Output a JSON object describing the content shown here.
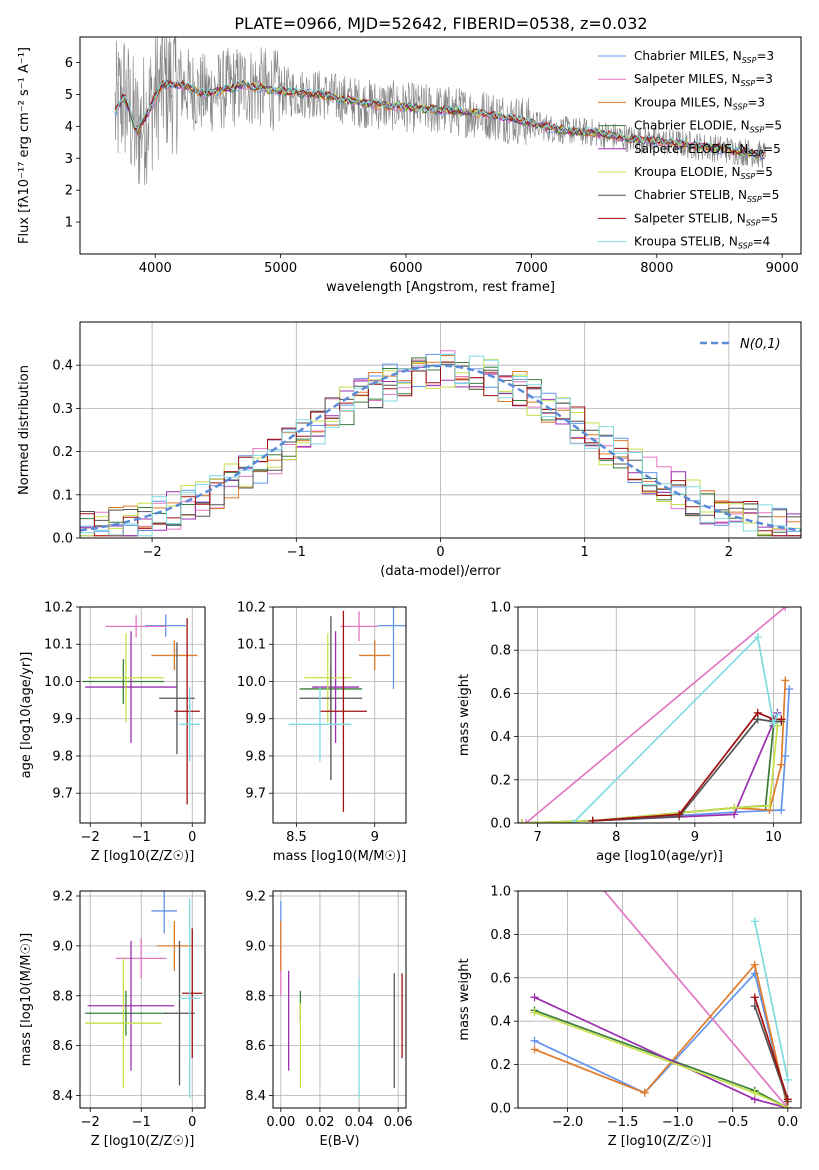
{
  "figure": {
    "title": "PLATE=0966, MJD=52642, FIBERID=0538, z=0.032"
  },
  "models": [
    {
      "label": "Chabrier MILES, N",
      "sub": "SSP",
      "tail": "=3",
      "color": "#6495ed"
    },
    {
      "label": "Salpeter MILES, N",
      "sub": "SSP",
      "tail": "=3",
      "color": "#e377c2"
    },
    {
      "label": "Kroupa MILES, N",
      "sub": "SSP",
      "tail": "=3",
      "color": "#e07b2a"
    },
    {
      "label": "Chabrier ELODIE, N",
      "sub": "SSP",
      "tail": "=5",
      "color": "#3a7d3a"
    },
    {
      "label": "Salpeter ELODIE, N",
      "sub": "SSP",
      "tail": "=5",
      "color": "#9b30b0"
    },
    {
      "label": "Kroupa ELODIE, N",
      "sub": "SSP",
      "tail": "=5",
      "color": "#c6e04a"
    },
    {
      "label": "Chabrier STELIB, N",
      "sub": "SSP",
      "tail": "=5",
      "color": "#555555"
    },
    {
      "label": "Salpeter STELIB, N",
      "sub": "SSP",
      "tail": "=5",
      "color": "#a01010"
    },
    {
      "label": "Kroupa STELIB, N",
      "sub": "SSP",
      "tail": "=4",
      "color": "#7fdbe0"
    }
  ],
  "chart_data": [
    {
      "id": "spectrum",
      "type": "line",
      "xlabel": "wavelength [Angstrom, rest frame]",
      "ylabel": "Flux [fλ10⁻¹⁷ erg cm⁻² s⁻¹ A⁻¹]",
      "xlim": [
        3400,
        9150
      ],
      "ylim": [
        0,
        6.8
      ],
      "xticks": [
        4000,
        5000,
        6000,
        7000,
        8000,
        9000
      ],
      "yticks": [
        1,
        2,
        3,
        4,
        5,
        6
      ],
      "data_color": "#808080",
      "model_anchor_x": [
        3680,
        3750,
        3850,
        3950,
        4050,
        4200,
        4400,
        4700,
        5000,
        5300,
        5700,
        6000,
        6300,
        6600,
        6900,
        7200,
        7500,
        7800,
        8100,
        8400,
        8700,
        8850
      ],
      "model_anchor_y": [
        4.4,
        5.0,
        3.8,
        4.5,
        5.3,
        5.3,
        5.0,
        5.3,
        5.1,
        5.0,
        4.7,
        4.6,
        4.5,
        4.4,
        4.2,
        3.9,
        3.8,
        3.6,
        3.5,
        3.35,
        3.2,
        3.1
      ]
    },
    {
      "id": "residuals",
      "type": "histogram",
      "xlabel": "(data-model)/error",
      "ylabel": "Normed distribution",
      "xlim": [
        -2.5,
        2.5
      ],
      "ylim": [
        0,
        0.5
      ],
      "xticks": [
        -2,
        -1,
        0,
        1,
        2
      ],
      "yticks": [
        0.0,
        0.1,
        0.2,
        0.3,
        0.4
      ],
      "grid": true,
      "legend": "top-right",
      "reference_curve": {
        "name": "N(0,1)",
        "mean": 0,
        "sigma": 1,
        "color": "#5b8bd6"
      },
      "bin_width": 0.1
    },
    {
      "id": "age-vs-Z",
      "type": "errorbar",
      "xlabel": "Z [log10(Z/Z☉)]",
      "ylabel": "age [log10(age/yr)]",
      "xlim": [
        -2.2,
        0.25
      ],
      "ylim": [
        9.62,
        10.2
      ],
      "xticks": [
        -2,
        -1,
        0
      ],
      "yticks": [
        9.7,
        9.8,
        9.9,
        10.0,
        10.1,
        10.2
      ],
      "points": [
        {
          "x": -0.52,
          "y": 10.15,
          "xerr": 0.4,
          "yerr": 0.03
        },
        {
          "x": -1.1,
          "y": 10.148,
          "xerr": 0.6,
          "yerr": 0.03
        },
        {
          "x": -0.35,
          "y": 10.07,
          "xerr": 0.45,
          "yerr": 0.04
        },
        {
          "x": -1.35,
          "y": 10.0,
          "xerr": 0.8,
          "yerr": 0.06
        },
        {
          "x": -1.2,
          "y": 9.985,
          "xerr": 0.9,
          "yerr": 0.15
        },
        {
          "x": -1.3,
          "y": 10.01,
          "xerr": 0.75,
          "yerr": 0.12
        },
        {
          "x": -0.3,
          "y": 9.955,
          "xerr": 0.35,
          "yerr": 0.15
        },
        {
          "x": -0.1,
          "y": 9.92,
          "xerr": 0.25,
          "yerr": 0.25
        },
        {
          "x": -0.05,
          "y": 9.885,
          "xerr": 0.2,
          "yerr": 0.1
        }
      ]
    },
    {
      "id": "age-vs-mass",
      "type": "errorbar",
      "xlabel": "mass [log10(M/M☉)]",
      "ylabel": "",
      "xlim": [
        8.35,
        9.2
      ],
      "ylim": [
        9.62,
        10.2
      ],
      "xticks": [
        8.5,
        9.0
      ],
      "yticks": [
        9.7,
        9.8,
        9.9,
        10.0,
        10.1,
        10.2
      ],
      "points": [
        {
          "x": 9.12,
          "y": 10.15,
          "xerr": 0.1,
          "yerr": 0.17
        },
        {
          "x": 8.9,
          "y": 10.148,
          "xerr": 0.12,
          "yerr": 0.04
        },
        {
          "x": 9.0,
          "y": 10.07,
          "xerr": 0.1,
          "yerr": 0.04
        },
        {
          "x": 8.72,
          "y": 9.98,
          "xerr": 0.2,
          "yerr": 0.06
        },
        {
          "x": 8.75,
          "y": 9.985,
          "xerr": 0.15,
          "yerr": 0.15
        },
        {
          "x": 8.7,
          "y": 10.01,
          "xerr": 0.15,
          "yerr": 0.12
        },
        {
          "x": 8.72,
          "y": 9.955,
          "xerr": 0.2,
          "yerr": 0.22
        },
        {
          "x": 8.8,
          "y": 9.92,
          "xerr": 0.15,
          "yerr": 0.27
        },
        {
          "x": 8.65,
          "y": 9.885,
          "xerr": 0.2,
          "yerr": 0.1
        }
      ]
    },
    {
      "id": "mass-weight-vs-age",
      "type": "line",
      "xlabel": "age [log10(age/yr)]",
      "ylabel": "mass weight",
      "xlim": [
        6.75,
        10.35
      ],
      "ylim": [
        0,
        1.0
      ],
      "xticks": [
        7,
        8,
        9,
        10
      ],
      "yticks": [
        0.0,
        0.2,
        0.4,
        0.6,
        0.8,
        1.0
      ],
      "grid": true,
      "series": [
        {
          "x": [
            7.7,
            9.5,
            10.1,
            10.15,
            10.2
          ],
          "y": [
            0.01,
            0.05,
            0.06,
            0.31,
            0.62
          ]
        },
        {
          "x": [
            6.85,
            10.15
          ],
          "y": [
            0.0,
            1.0
          ]
        },
        {
          "x": [
            7.7,
            9.5,
            9.95,
            10.1,
            10.15
          ],
          "y": [
            0.01,
            0.07,
            0.06,
            0.27,
            0.66
          ]
        },
        {
          "x": [
            6.8,
            7.7,
            9.5,
            9.9,
            10.0
          ],
          "y": [
            0.0,
            0.01,
            0.07,
            0.08,
            0.45
          ]
        },
        {
          "x": [
            6.8,
            7.7,
            9.5,
            10.05
          ],
          "y": [
            0.0,
            0.01,
            0.04,
            0.51
          ]
        },
        {
          "x": [
            6.8,
            7.7,
            9.5,
            9.95,
            10.05
          ],
          "y": [
            0.0,
            0.01,
            0.07,
            0.08,
            0.45
          ]
        },
        {
          "x": [
            7.7,
            8.8,
            9.8,
            10.0,
            10.1
          ],
          "y": [
            0.01,
            0.03,
            0.48,
            0.47,
            0.47
          ]
        },
        {
          "x": [
            7.7,
            8.8,
            9.8,
            10.0,
            10.1
          ],
          "y": [
            0.01,
            0.04,
            0.51,
            0.48,
            0.48
          ]
        },
        {
          "x": [
            7.45,
            9.8,
            10.0,
            10.05
          ],
          "y": [
            0.0,
            0.86,
            0.46,
            0.5
          ]
        }
      ]
    },
    {
      "id": "mass-vs-Z",
      "type": "errorbar",
      "xlabel": "Z [log10(Z/Z☉)]",
      "ylabel": "mass [log10(M/M☉)]",
      "xlim": [
        -2.2,
        0.25
      ],
      "ylim": [
        8.35,
        9.22
      ],
      "xticks": [
        -2,
        -1,
        0
      ],
      "yticks": [
        8.4,
        8.6,
        8.8,
        9.0,
        9.2
      ],
      "points": [
        {
          "x": -0.55,
          "y": 9.14,
          "xerr": 0.25,
          "yerr": 0.09
        },
        {
          "x": -1.0,
          "y": 8.95,
          "xerr": 0.5,
          "yerr": 0.08
        },
        {
          "x": -0.35,
          "y": 9.0,
          "xerr": 0.35,
          "yerr": 0.1
        },
        {
          "x": -1.3,
          "y": 8.73,
          "xerr": 0.8,
          "yerr": 0.09
        },
        {
          "x": -1.2,
          "y": 8.76,
          "xerr": 0.85,
          "yerr": 0.26
        },
        {
          "x": -1.35,
          "y": 8.69,
          "xerr": 0.75,
          "yerr": 0.26
        },
        {
          "x": -0.25,
          "y": 8.73,
          "xerr": 0.3,
          "yerr": 0.29
        },
        {
          "x": 0.0,
          "y": 8.81,
          "xerr": 0.2,
          "yerr": 0.26
        },
        {
          "x": -0.05,
          "y": 8.79,
          "xerr": 0.2,
          "yerr": 0.4
        }
      ]
    },
    {
      "id": "mass-vs-EBV",
      "type": "errorbar",
      "xlabel": "E(B-V)",
      "ylabel": "",
      "xlim": [
        -0.004,
        0.064
      ],
      "ylim": [
        8.35,
        9.22
      ],
      "xticks": [
        0.0,
        0.02,
        0.04,
        0.06
      ],
      "xticklabels": [
        "0.00",
        "0.02",
        "0.04",
        "0.06"
      ],
      "yticks": [
        8.4,
        8.6,
        8.8,
        9.0,
        9.2
      ],
      "points": [
        {
          "x": 0.0,
          "y": 9.05,
          "xerr": 0,
          "yerr": 0.13
        },
        {
          "x": 0.0,
          "y": 8.9,
          "xerr": 0,
          "yerr": 0.1
        },
        {
          "x": 0.0,
          "y": 9.0,
          "xerr": 0,
          "yerr": 0.1
        },
        {
          "x": 0.01,
          "y": 8.76,
          "xerr": 0,
          "yerr": 0.06
        },
        {
          "x": 0.004,
          "y": 8.7,
          "xerr": 0,
          "yerr": 0.2
        },
        {
          "x": 0.01,
          "y": 8.6,
          "xerr": 0,
          "yerr": 0.17
        },
        {
          "x": 0.058,
          "y": 8.66,
          "xerr": 0,
          "yerr": 0.23
        },
        {
          "x": 0.062,
          "y": 8.72,
          "xerr": 0,
          "yerr": 0.17
        },
        {
          "x": 0.04,
          "y": 8.63,
          "xerr": 0,
          "yerr": 0.24
        }
      ]
    },
    {
      "id": "mass-weight-vs-Z",
      "type": "line",
      "xlabel": "Z [log10(Z/Z☉)]",
      "ylabel": "mass weight",
      "xlim": [
        -2.45,
        0.12
      ],
      "ylim": [
        0,
        1.0
      ],
      "xticks": [
        -2.0,
        -1.5,
        -1.0,
        -0.5,
        0.0
      ],
      "xticklabels": [
        "−2.0",
        "−1.5",
        "−1.0",
        "−0.5",
        "0.0"
      ],
      "yticks": [
        0.0,
        0.2,
        0.4,
        0.6,
        0.8,
        1.0
      ],
      "grid": true,
      "series": [
        {
          "x": [
            -2.3,
            -1.3,
            -0.3,
            0.0
          ],
          "y": [
            0.31,
            0.07,
            0.62,
            0.0
          ]
        },
        {
          "x": [
            -1.75,
            0.0
          ],
          "y": [
            1.05,
            0.0
          ]
        },
        {
          "x": [
            -2.3,
            -1.3,
            -0.3,
            0.0
          ],
          "y": [
            0.27,
            0.07,
            0.66,
            0.0
          ]
        },
        {
          "x": [
            -2.3,
            -0.3,
            0.0
          ],
          "y": [
            0.45,
            0.08,
            0.0
          ]
        },
        {
          "x": [
            -2.3,
            -0.3,
            0.0
          ],
          "y": [
            0.51,
            0.04,
            0.0
          ]
        },
        {
          "x": [
            -2.3,
            -0.3,
            0.0
          ],
          "y": [
            0.44,
            0.07,
            0.0
          ]
        },
        {
          "x": [
            -0.3,
            0.0
          ],
          "y": [
            0.47,
            0.03
          ]
        },
        {
          "x": [
            -0.3,
            0.0
          ],
          "y": [
            0.51,
            0.04
          ]
        },
        {
          "x": [
            -0.3,
            0.0
          ],
          "y": [
            0.86,
            0.13
          ]
        }
      ]
    }
  ]
}
